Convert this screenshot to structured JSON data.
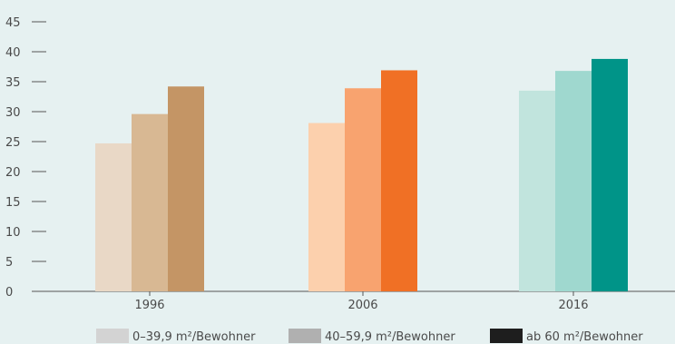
{
  "chart_data": {
    "type": "bar",
    "title": "",
    "xlabel": "",
    "ylabel": "",
    "categories": [
      "1996",
      "2006",
      "2016"
    ],
    "ylim": [
      0,
      45
    ],
    "yticks": [
      0,
      5,
      10,
      15,
      20,
      25,
      30,
      35,
      40,
      45
    ],
    "grid": false,
    "legend_position": "bottom",
    "series": [
      {
        "name": "0–39,9 m²/Bewohner",
        "values": [
          24.7,
          28.1,
          33.5
        ],
        "colors": [
          "#e9d8c6",
          "#fcd0ad",
          "#c1e4dd"
        ],
        "legend_color": "#d3d3d3"
      },
      {
        "name": "40–59,9 m²/Bewohner",
        "values": [
          29.6,
          33.9,
          36.8
        ],
        "colors": [
          "#d8b893",
          "#f8a36f",
          "#9fd8cf"
        ],
        "legend_color": "#b0b0b0"
      },
      {
        "name": "ab 60 m²/Bewohner",
        "values": [
          34.2,
          36.9,
          38.8
        ],
        "colors": [
          "#c49565",
          "#f07025",
          "#009488"
        ],
        "legend_color": "#1e1e1e"
      }
    ]
  }
}
